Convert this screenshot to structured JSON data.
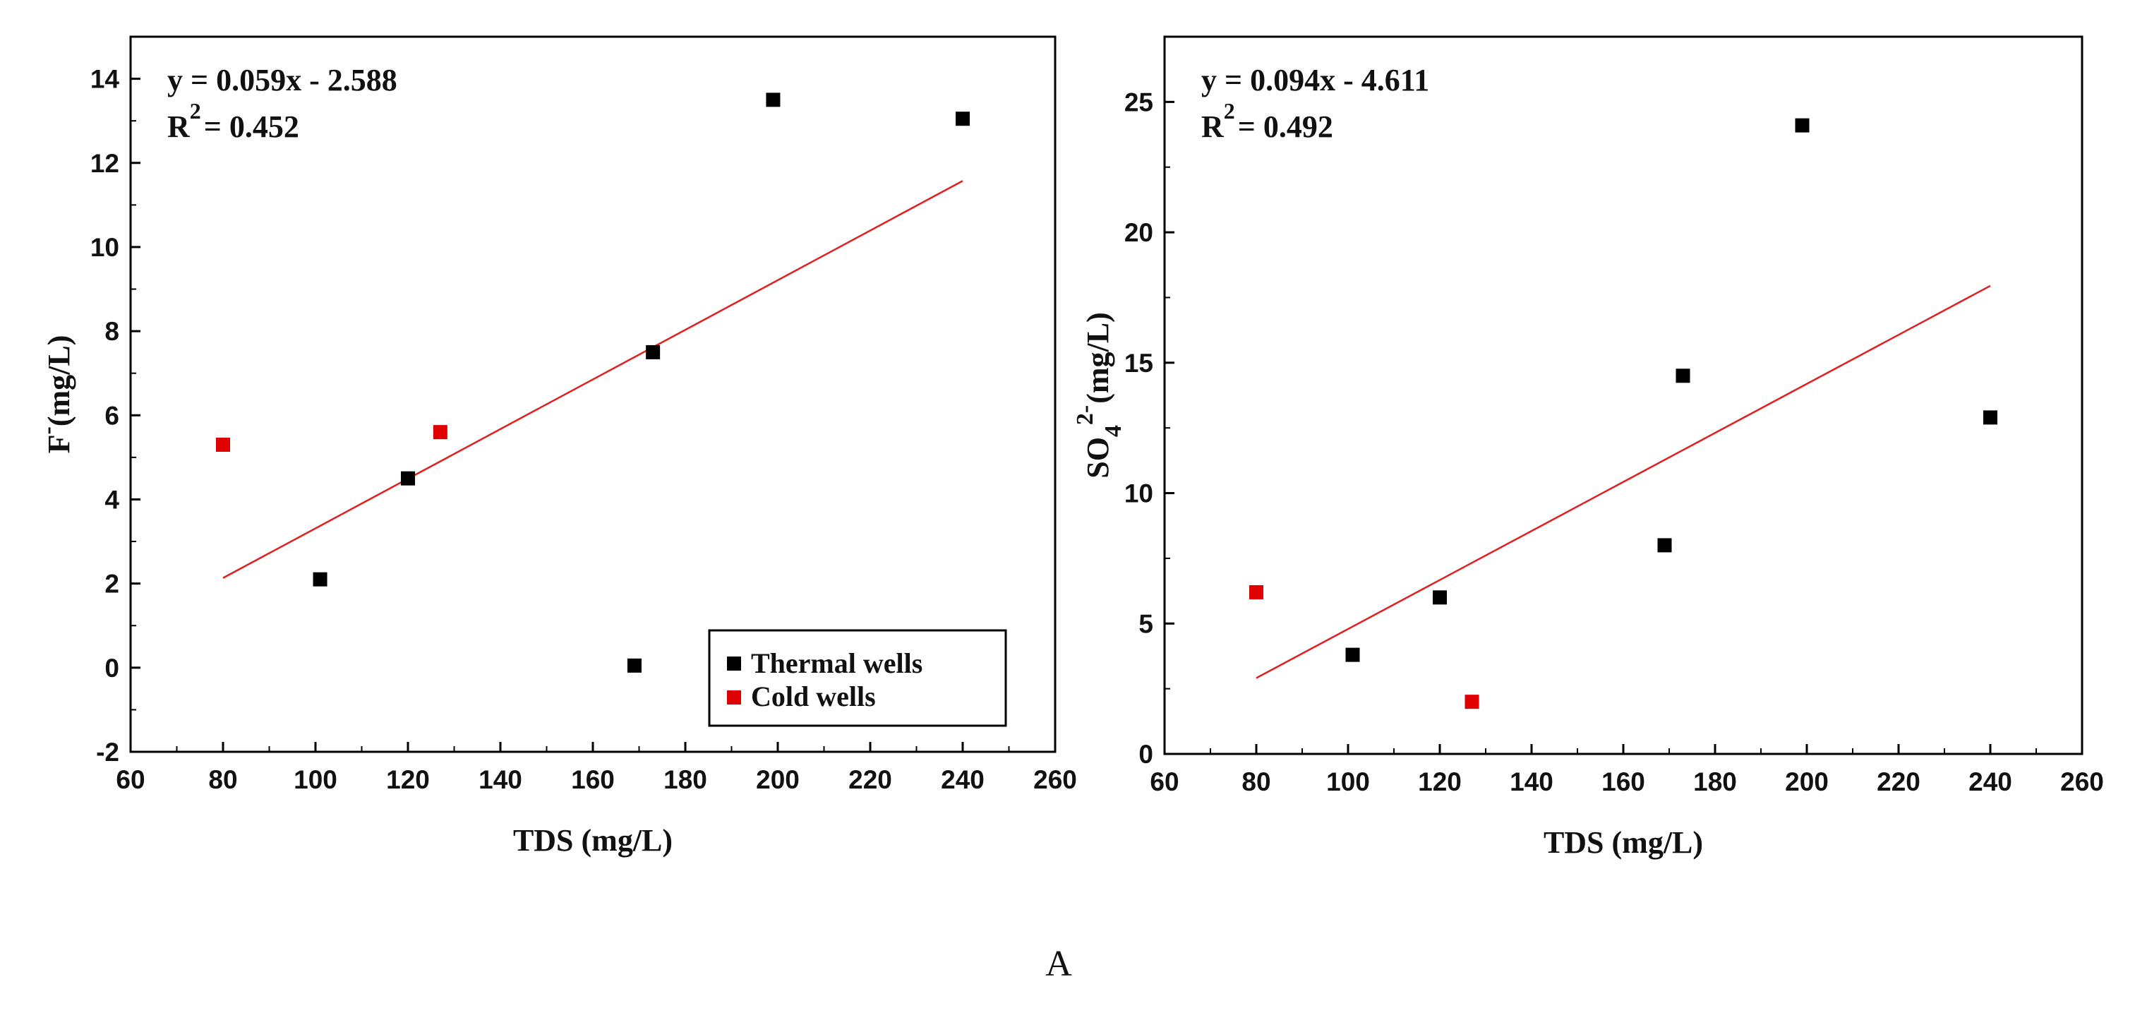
{
  "caption": "A",
  "colors": {
    "thermal": "#000000",
    "cold": "#e00000",
    "fit": "#e02020",
    "axis": "#000000"
  },
  "chart_data": [
    {
      "id": "fluoride",
      "type": "scatter",
      "xlabel": "TDS (mg/L)",
      "ylabel": {
        "base": "F",
        "sup": "-",
        "unit": "(mg/L)"
      },
      "xlim": [
        60,
        260
      ],
      "ylim": [
        -2,
        15
      ],
      "xticks": [
        60,
        80,
        100,
        120,
        140,
        160,
        180,
        200,
        220,
        240,
        260
      ],
      "yticks": [
        -2,
        0,
        2,
        4,
        6,
        8,
        10,
        12,
        14
      ],
      "equation": {
        "line1": "y = 0.059x - 2.588",
        "r_prefix": "R",
        "r_sup": "2",
        "r_rest": "= 0.452"
      },
      "fit": {
        "slope": 0.059,
        "intercept": -2.588,
        "x_range": [
          80,
          240
        ]
      },
      "series": [
        {
          "name": "Thermal wells",
          "color": "#000000",
          "points": [
            [
              101,
              2.1
            ],
            [
              120,
              4.5
            ],
            [
              169,
              0.05
            ],
            [
              173,
              7.5
            ],
            [
              199,
              13.5
            ],
            [
              240,
              13.05
            ]
          ]
        },
        {
          "name": "Cold wells",
          "color": "#e00000",
          "points": [
            [
              80,
              5.3
            ],
            [
              127,
              5.6
            ]
          ]
        }
      ],
      "legend": {
        "position": "bottom-right",
        "items": [
          "Thermal wells",
          "Cold wells"
        ]
      }
    },
    {
      "id": "sulfate",
      "type": "scatter",
      "xlabel": "TDS (mg/L)",
      "ylabel": {
        "base": "SO",
        "sub": "4",
        "sup": "2-",
        "unit": "(mg/L)"
      },
      "xlim": [
        60,
        260
      ],
      "ylim": [
        0,
        27.5
      ],
      "xticks": [
        60,
        80,
        100,
        120,
        140,
        160,
        180,
        200,
        220,
        240,
        260
      ],
      "yticks": [
        0,
        5,
        10,
        15,
        20,
        25
      ],
      "equation": {
        "line1": "y = 0.094x - 4.611",
        "r_prefix": "R",
        "r_sup": "2",
        "r_rest": "= 0.492"
      },
      "fit": {
        "slope": 0.094,
        "intercept": -4.611,
        "x_range": [
          80,
          240
        ]
      },
      "series": [
        {
          "name": "Thermal wells",
          "color": "#000000",
          "points": [
            [
              101,
              3.8
            ],
            [
              120,
              6.0
            ],
            [
              169,
              8.0
            ],
            [
              173,
              14.5
            ],
            [
              199,
              24.1
            ],
            [
              240,
              12.9
            ]
          ]
        },
        {
          "name": "Cold wells",
          "color": "#e00000",
          "points": [
            [
              80,
              6.2
            ],
            [
              127,
              2.0
            ]
          ]
        }
      ]
    }
  ]
}
